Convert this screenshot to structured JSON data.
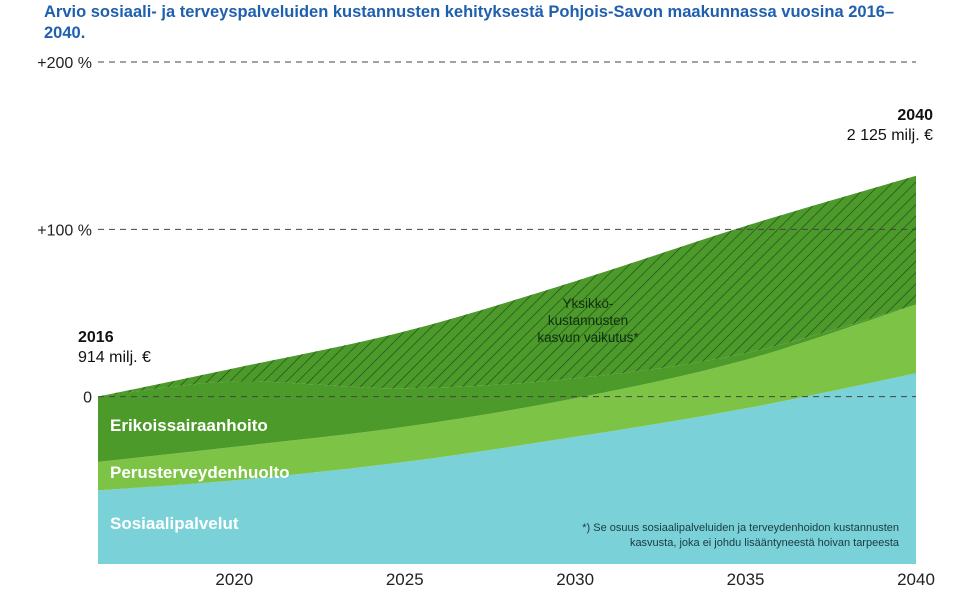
{
  "title": "Arvio sosiaali- ja terveyspalveluiden kustannusten kehityksestä Pohjois-Savon maakunnassa vuosina 2016–2040.",
  "annotations": {
    "start_year": "2016",
    "start_value": "914 milj. €",
    "end_year": "2040",
    "end_value": "2 125 milj. €"
  },
  "hatch_label_lines": [
    "Yksikkö-",
    "kustannusten",
    "kasvun vaikutus*"
  ],
  "footnote_lines": [
    "*) Se osuus sosiaalipalveluiden ja terveydenhoidon kustannusten",
    "kasvusta, joka ei johdu lisääntyneestä hoivan tarpeesta"
  ],
  "colors": {
    "title": "#1f5fae",
    "sosiaalipalvelut": "#7bd1d8",
    "perusterveydenhuolto": "#7cc346",
    "erikoissairaanhoito": "#4c9a2a",
    "hatch_lines": "#1f3f1f",
    "grid": "#444444"
  },
  "chart_data": {
    "type": "area",
    "stacked": true,
    "x": [
      2016,
      2020,
      2025,
      2030,
      2035,
      2040
    ],
    "ylim": [
      -100,
      200
    ],
    "yticks": [
      {
        "value": 200,
        "label": "+200 %"
      },
      {
        "value": 100,
        "label": "+100 %"
      },
      {
        "value": 0,
        "label": "0"
      }
    ],
    "xticks": [
      2020,
      2025,
      2030,
      2035,
      2040
    ],
    "grid": "dashed horizontal",
    "legend": "inline labels",
    "series": [
      {
        "name": "Sosiaalipalvelut",
        "lower": [
          -100,
          -100,
          -100,
          -100,
          -100,
          -100
        ],
        "upper": [
          -56,
          -50,
          -39,
          -24,
          -7,
          14
        ]
      },
      {
        "name": "Perusterveydenhuolto",
        "lower": [
          -56,
          -50,
          -39,
          -24,
          -7,
          14
        ],
        "upper": [
          -39,
          -30,
          -18,
          -1,
          22,
          55
        ]
      },
      {
        "name": "Erikoissairaanhoito",
        "lower": [
          -39,
          -30,
          -18,
          -1,
          22,
          55
        ],
        "upper": [
          0,
          9,
          5,
          11,
          26,
          55
        ]
      },
      {
        "name": "Yksikkökustannusten kasvun vaikutus",
        "hatched": true,
        "lower": [
          0,
          9,
          5,
          11,
          26,
          55
        ],
        "upper": [
          0,
          17,
          39,
          69,
          102,
          132
        ]
      }
    ]
  }
}
